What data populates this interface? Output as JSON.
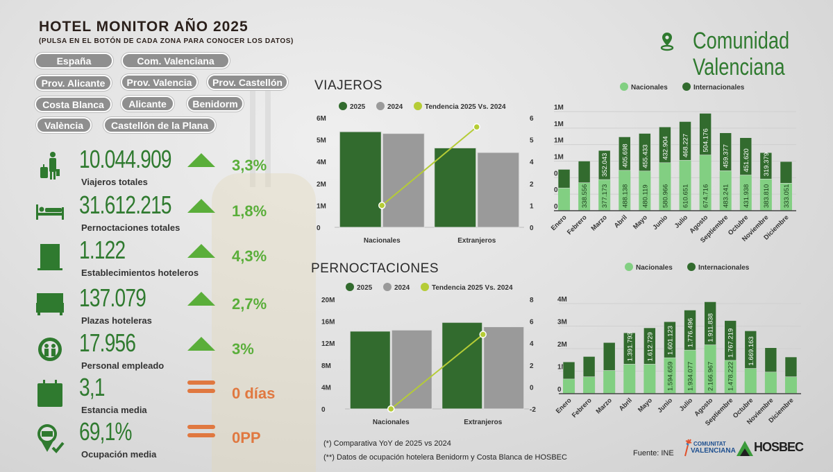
{
  "header": {
    "title": "HOTEL MONITOR AÑO 2025",
    "subtitle": "(PULSA EN EL BOTÓN DE CADA ZONA PARA CONOCER LOS DATOS)"
  },
  "zones": [
    "España",
    "Com. Valenciana",
    "Prov. Alicante",
    "Prov. Valencia",
    "Prov. Castellón",
    "Costa Blanca",
    "Alicante",
    "Benidorm",
    "València",
    "Castellón de la Plana"
  ],
  "region": {
    "line1": "Comunidad",
    "line2": "Valenciana",
    "icon": "map-pin-icon"
  },
  "kpis": [
    {
      "value": "10.044.909",
      "label": "Viajeros totales",
      "change": "3,3%",
      "trend": "up",
      "icon": "traveler-icon"
    },
    {
      "value": "31.612.215",
      "label": "Pernoctaciones totales",
      "change": "1,8%",
      "trend": "up",
      "icon": "bed-icon"
    },
    {
      "value": "1.122",
      "label": "Establecimientos hoteleros",
      "change": "4,3%",
      "trend": "up",
      "icon": "hotel-icon"
    },
    {
      "value": "137.079",
      "label": "Plazas hoteleras",
      "change": "2,7%",
      "trend": "up",
      "icon": "double-bed-icon"
    },
    {
      "value": "17.956",
      "label": "Personal empleado",
      "change": "3%",
      "trend": "up",
      "icon": "staff-gear-icon"
    },
    {
      "value": "3,1",
      "label": "Estancia media",
      "change": "0 días",
      "trend": "flat",
      "icon": "calendar-icon"
    },
    {
      "value": "69,1%",
      "label": "Ocupación media",
      "change": "0PP",
      "trend": "flat",
      "icon": "occupancy-check-icon"
    }
  ],
  "colors": {
    "dark_green": "#326b2e",
    "light_green": "#82cf82",
    "gray": "#9a9a9a",
    "lime": "#b5cc36",
    "up": "#5aae3a",
    "flat": "#e07840",
    "value": "#2f7a2f"
  },
  "sections": {
    "viajeros": "VIAJEROS",
    "pernoctaciones": "PERNOCTACIONES"
  },
  "chart_data": [
    {
      "type": "bar",
      "title": "VIAJEROS",
      "legend": [
        "2025",
        "2024",
        "Tendencia 2025 Vs. 2024"
      ],
      "categories": [
        "Nacionales",
        "Extranjeros"
      ],
      "series": [
        {
          "name": "2025",
          "values": [
            5240000,
            4350000
          ]
        },
        {
          "name": "2024",
          "values": [
            5140000,
            4100000
          ]
        }
      ],
      "trend": {
        "name": "Tendencia 2025 Vs. 2024",
        "values": [
          1.2,
          5.5
        ]
      },
      "ylim": [
        0,
        6000000
      ],
      "yticks": [
        "0",
        "1M",
        "2M",
        "4M",
        "5M",
        "6M"
      ],
      "y2lim": [
        0,
        6
      ],
      "y2ticks": [
        "0",
        "1",
        "2",
        "4",
        "5",
        "6"
      ]
    },
    {
      "type": "bar",
      "title": "PERNOCTACIONES",
      "legend": [
        "2025",
        "2024",
        "Tendencia 2025 Vs. 2024"
      ],
      "categories": [
        "Nacionales",
        "Extranjeros"
      ],
      "series": [
        {
          "name": "2025",
          "values": [
            14200000,
            15800000
          ]
        },
        {
          "name": "2024",
          "values": [
            14400000,
            15000000
          ]
        }
      ],
      "trend": {
        "name": "Tendencia 2025 Vs. 2024",
        "values": [
          -2,
          4.8
        ]
      },
      "ylim": [
        0,
        20000000
      ],
      "yticks": [
        "0",
        "4M",
        "8M",
        "12M",
        "16M",
        "20M"
      ],
      "y2lim": [
        -2,
        8
      ],
      "y2ticks": [
        "-2",
        "0",
        "2",
        "4",
        "6",
        "8"
      ]
    },
    {
      "type": "bar",
      "stacked": true,
      "legend": [
        "Nacionales",
        "Internacionales"
      ],
      "categories": [
        "Enero",
        "Febrero",
        "Marzo",
        "Abril",
        "Mayo",
        "Junio",
        "Julio",
        "Agosto",
        "Septiembre",
        "Octubre",
        "Noviembre",
        "Diciembre"
      ],
      "series": [
        {
          "name": "Nacionales",
          "values": [
            275000,
            338556,
            377173,
            488138,
            480119,
            580966,
            610651,
            674716,
            483241,
            431938,
            383810,
            333051
          ],
          "labeled": [
            false,
            true,
            true,
            true,
            true,
            true,
            true,
            true,
            true,
            true,
            true,
            true
          ]
        },
        {
          "name": "Internacionales",
          "values": [
            225000,
            262000,
            352043,
            405698,
            455433,
            432904,
            468227,
            504176,
            459377,
            451620,
            319379,
            262000
          ],
          "labeled": [
            false,
            false,
            true,
            true,
            true,
            true,
            true,
            true,
            true,
            true,
            true,
            false
          ]
        }
      ],
      "ylim": [
        0,
        1200000
      ],
      "yticks": [
        "0",
        "0M",
        "0M",
        "1M",
        "1M",
        "1M",
        "1M"
      ]
    },
    {
      "type": "bar",
      "stacked": true,
      "legend": [
        "Nacionales",
        "Internacionales"
      ],
      "categories": [
        "Enero",
        "Febrero",
        "Marzo",
        "Abril",
        "Mayo",
        "Junio",
        "Julio",
        "Agosto",
        "Septiembre",
        "Octubre",
        "Noviembre",
        "Diciembre"
      ],
      "series": [
        {
          "name": "Nacionales",
          "values": [
            650000,
            750000,
            1030000,
            1310000,
            1310000,
            1594659,
            1934077,
            2166967,
            1478222,
            1120000,
            960000,
            750000
          ],
          "labeled": [
            false,
            false,
            false,
            false,
            false,
            true,
            true,
            true,
            true,
            false,
            false,
            false
          ]
        },
        {
          "name": "Internacionales",
          "values": [
            760000,
            900000,
            1240000,
            1391793,
            1612729,
            1601123,
            1776496,
            1911838,
            1767219,
            1669163,
            1080000,
            880000
          ],
          "labeled": [
            false,
            false,
            false,
            true,
            true,
            true,
            true,
            true,
            true,
            true,
            false,
            false
          ]
        }
      ],
      "ylim": [
        0,
        4000000
      ],
      "yticks": [
        "0",
        "1M",
        "2M",
        "3M",
        "4M"
      ]
    }
  ],
  "footer": {
    "note1": "(*) Comparativa YoY de 2025 vs 2024",
    "note2": "(**) Datos de ocupación hotelera Benidorm y Costa Blanca de HOSBEC",
    "source": "Fuente: INE",
    "logo1_line1": "COMUNITAT",
    "logo1_line2": "VALENCIANA",
    "logo2": "HOSBEC"
  }
}
